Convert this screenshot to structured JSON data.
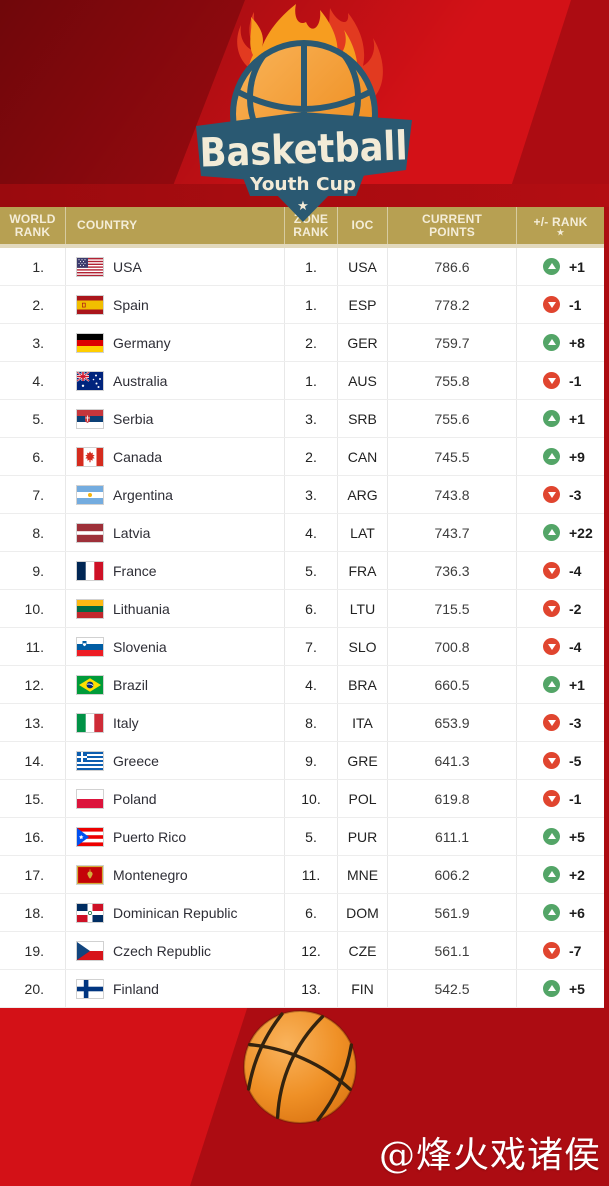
{
  "logo": {
    "title": "Basketball",
    "subtitle": "Youth Cup",
    "star": "★"
  },
  "table": {
    "headers": {
      "world_rank": "WORLD RANK",
      "country": "COUNTRY",
      "zone_rank": "ZONE RANK",
      "ioc": "IOC",
      "current_points": "CURRENT POINTS",
      "rank_change": "+/- RANK",
      "rank_change_note": "★"
    },
    "rows": [
      {
        "world_rank": "1.",
        "country": "USA",
        "flag": "usa",
        "zone_rank": "1.",
        "ioc": "USA",
        "points": "786.6",
        "delta": "+1",
        "direction": "up"
      },
      {
        "world_rank": "2.",
        "country": "Spain",
        "flag": "esp",
        "zone_rank": "1.",
        "ioc": "ESP",
        "points": "778.2",
        "delta": "-1",
        "direction": "down"
      },
      {
        "world_rank": "3.",
        "country": "Germany",
        "flag": "ger",
        "zone_rank": "2.",
        "ioc": "GER",
        "points": "759.7",
        "delta": "+8",
        "direction": "up"
      },
      {
        "world_rank": "4.",
        "country": "Australia",
        "flag": "aus",
        "zone_rank": "1.",
        "ioc": "AUS",
        "points": "755.8",
        "delta": "-1",
        "direction": "down"
      },
      {
        "world_rank": "5.",
        "country": "Serbia",
        "flag": "srb",
        "zone_rank": "3.",
        "ioc": "SRB",
        "points": "755.6",
        "delta": "+1",
        "direction": "up"
      },
      {
        "world_rank": "6.",
        "country": "Canada",
        "flag": "can",
        "zone_rank": "2.",
        "ioc": "CAN",
        "points": "745.5",
        "delta": "+9",
        "direction": "up"
      },
      {
        "world_rank": "7.",
        "country": "Argentina",
        "flag": "arg",
        "zone_rank": "3.",
        "ioc": "ARG",
        "points": "743.8",
        "delta": "-3",
        "direction": "down"
      },
      {
        "world_rank": "8.",
        "country": "Latvia",
        "flag": "lat",
        "zone_rank": "4.",
        "ioc": "LAT",
        "points": "743.7",
        "delta": "+22",
        "direction": "up"
      },
      {
        "world_rank": "9.",
        "country": "France",
        "flag": "fra",
        "zone_rank": "5.",
        "ioc": "FRA",
        "points": "736.3",
        "delta": "-4",
        "direction": "down"
      },
      {
        "world_rank": "10.",
        "country": "Lithuania",
        "flag": "ltu",
        "zone_rank": "6.",
        "ioc": "LTU",
        "points": "715.5",
        "delta": "-2",
        "direction": "down"
      },
      {
        "world_rank": "11.",
        "country": "Slovenia",
        "flag": "slo",
        "zone_rank": "7.",
        "ioc": "SLO",
        "points": "700.8",
        "delta": "-4",
        "direction": "down"
      },
      {
        "world_rank": "12.",
        "country": "Brazil",
        "flag": "bra",
        "zone_rank": "4.",
        "ioc": "BRA",
        "points": "660.5",
        "delta": "+1",
        "direction": "up"
      },
      {
        "world_rank": "13.",
        "country": "Italy",
        "flag": "ita",
        "zone_rank": "8.",
        "ioc": "ITA",
        "points": "653.9",
        "delta": "-3",
        "direction": "down"
      },
      {
        "world_rank": "14.",
        "country": "Greece",
        "flag": "gre",
        "zone_rank": "9.",
        "ioc": "GRE",
        "points": "641.3",
        "delta": "-5",
        "direction": "down"
      },
      {
        "world_rank": "15.",
        "country": "Poland",
        "flag": "pol",
        "zone_rank": "10.",
        "ioc": "POL",
        "points": "619.8",
        "delta": "-1",
        "direction": "down"
      },
      {
        "world_rank": "16.",
        "country": "Puerto Rico",
        "flag": "pur",
        "zone_rank": "5.",
        "ioc": "PUR",
        "points": "611.1",
        "delta": "+5",
        "direction": "up"
      },
      {
        "world_rank": "17.",
        "country": "Montenegro",
        "flag": "mne",
        "zone_rank": "11.",
        "ioc": "MNE",
        "points": "606.2",
        "delta": "+2",
        "direction": "up"
      },
      {
        "world_rank": "18.",
        "country": "Dominican Republic",
        "flag": "dom",
        "zone_rank": "6.",
        "ioc": "DOM",
        "points": "561.9",
        "delta": "+6",
        "direction": "up"
      },
      {
        "world_rank": "19.",
        "country": "Czech Republic",
        "flag": "cze",
        "zone_rank": "12.",
        "ioc": "CZE",
        "points": "561.1",
        "delta": "-7",
        "direction": "down"
      },
      {
        "world_rank": "20.",
        "country": "Finland",
        "flag": "fin",
        "zone_rank": "13.",
        "ioc": "FIN",
        "points": "542.5",
        "delta": "+5",
        "direction": "up"
      }
    ]
  },
  "watermark": {
    "text": "@烽火戏诸侯"
  },
  "colors": {
    "red_base": "#d31117",
    "red_dark": "#a30b10",
    "gold": "#b7a052",
    "cream": "#f4edd8",
    "navy": "#2a5972",
    "green": "#53a567",
    "badge_red": "#e0452f",
    "ink": "#222222"
  },
  "chart_data": {
    "type": "table",
    "title": "Basketball Youth Cup",
    "columns": [
      "WORLD RANK",
      "COUNTRY",
      "ZONE RANK",
      "IOC",
      "CURRENT POINTS",
      "+/- RANK *"
    ],
    "rows": [
      [
        1,
        "USA",
        1,
        "USA",
        786.6,
        "+1"
      ],
      [
        2,
        "Spain",
        1,
        "ESP",
        778.2,
        "-1"
      ],
      [
        3,
        "Germany",
        2,
        "GER",
        759.7,
        "+8"
      ],
      [
        4,
        "Australia",
        1,
        "AUS",
        755.8,
        "-1"
      ],
      [
        5,
        "Serbia",
        3,
        "SRB",
        755.6,
        "+1"
      ],
      [
        6,
        "Canada",
        2,
        "CAN",
        745.5,
        "+9"
      ],
      [
        7,
        "Argentina",
        3,
        "ARG",
        743.8,
        "-3"
      ],
      [
        8,
        "Latvia",
        4,
        "LAT",
        743.7,
        "+22"
      ],
      [
        9,
        "France",
        5,
        "FRA",
        736.3,
        "-4"
      ],
      [
        10,
        "Lithuania",
        6,
        "LTU",
        715.5,
        "-2"
      ],
      [
        11,
        "Slovenia",
        7,
        "SLO",
        700.8,
        "-4"
      ],
      [
        12,
        "Brazil",
        4,
        "BRA",
        660.5,
        "+1"
      ],
      [
        13,
        "Italy",
        8,
        "ITA",
        653.9,
        "-3"
      ],
      [
        14,
        "Greece",
        9,
        "GRE",
        641.3,
        "-5"
      ],
      [
        15,
        "Poland",
        10,
        "POL",
        619.8,
        "-1"
      ],
      [
        16,
        "Puerto Rico",
        5,
        "PUR",
        611.1,
        "+5"
      ],
      [
        17,
        "Montenegro",
        11,
        "MNE",
        606.2,
        "+2"
      ],
      [
        18,
        "Dominican Republic",
        6,
        "DOM",
        561.9,
        "+6"
      ],
      [
        19,
        "Czech Republic",
        12,
        "CZE",
        561.1,
        "-7"
      ],
      [
        20,
        "Finland",
        13,
        "FIN",
        542.5,
        "+5"
      ]
    ]
  }
}
